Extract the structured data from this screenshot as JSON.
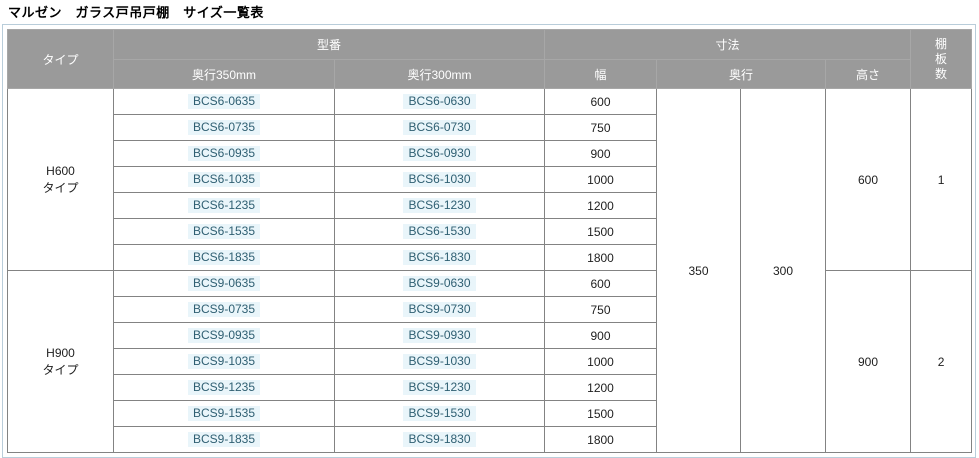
{
  "title": "マルゼン　ガラス戸吊戸棚　サイズ一覧表",
  "colors": {
    "header_bg": "#9a9a9a",
    "header_text": "#ffffff",
    "body_text": "#1e1e1e",
    "grid_border": "#838383",
    "outer_border": "#b9cdda",
    "model_link_text": "#2f5f72",
    "model_link_bg": "#e9f5fa"
  },
  "table": {
    "headers": {
      "type": "タイプ",
      "model": "型番",
      "model_depth_350": "奥行350mm",
      "model_depth_300": "奥行300mm",
      "dimensions": "寸法",
      "width": "幅",
      "depth": "奥行",
      "height": "高さ",
      "shelf_count": "棚\n板\n数"
    },
    "depth_values": {
      "d350": "350",
      "d300": "300"
    },
    "groups": [
      {
        "type_label": "H600\nタイプ",
        "height": "600",
        "shelves": "1",
        "rows": [
          {
            "model350": "BCS6-0635",
            "model300": "BCS6-0630",
            "width": "600"
          },
          {
            "model350": "BCS6-0735",
            "model300": "BCS6-0730",
            "width": "750"
          },
          {
            "model350": "BCS6-0935",
            "model300": "BCS6-0930",
            "width": "900"
          },
          {
            "model350": "BCS6-1035",
            "model300": "BCS6-1030",
            "width": "1000"
          },
          {
            "model350": "BCS6-1235",
            "model300": "BCS6-1230",
            "width": "1200"
          },
          {
            "model350": "BCS6-1535",
            "model300": "BCS6-1530",
            "width": "1500"
          },
          {
            "model350": "BCS6-1835",
            "model300": "BCS6-1830",
            "width": "1800"
          }
        ]
      },
      {
        "type_label": "H900\nタイプ",
        "height": "900",
        "shelves": "2",
        "rows": [
          {
            "model350": "BCS9-0635",
            "model300": "BCS9-0630",
            "width": "600"
          },
          {
            "model350": "BCS9-0735",
            "model300": "BCS9-0730",
            "width": "750"
          },
          {
            "model350": "BCS9-0935",
            "model300": "BCS9-0930",
            "width": "900"
          },
          {
            "model350": "BCS9-1035",
            "model300": "BCS9-1030",
            "width": "1000"
          },
          {
            "model350": "BCS9-1235",
            "model300": "BCS9-1230",
            "width": "1200"
          },
          {
            "model350": "BCS9-1535",
            "model300": "BCS9-1530",
            "width": "1500"
          },
          {
            "model350": "BCS9-1835",
            "model300": "BCS9-1830",
            "width": "1800"
          }
        ]
      }
    ]
  }
}
